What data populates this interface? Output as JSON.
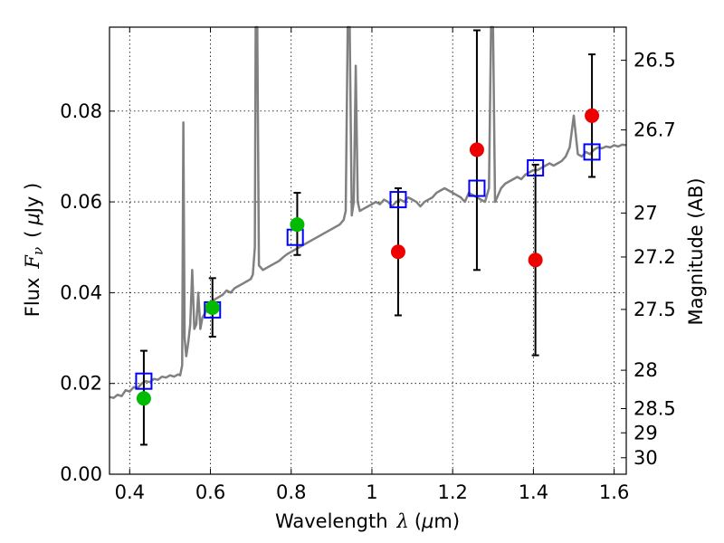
{
  "chart_data": {
    "type": "scatter",
    "xlabel": "Wavelength",
    "xlabel_symbol": "λ",
    "xlabel_unit_open": "(",
    "xlabel_unit_mu": "μ",
    "xlabel_unit_rest": "m)",
    "ylabel": "Flux",
    "ylabel_symbol": "F",
    "ylabel_symbol_sub": "ν",
    "ylabel_unit_open": "(",
    "ylabel_unit_mu": "μ",
    "ylabel_unit_rest": "Jy )",
    "ylabel_right": "Magnitude (AB)",
    "xlim": [
      0.35,
      1.63
    ],
    "ylim": [
      0.0,
      0.0985
    ],
    "grid": true,
    "x_ticks": [
      0.4,
      0.6,
      0.8,
      1.0,
      1.2,
      1.4,
      1.6
    ],
    "x_tick_labels": [
      "0.4",
      "0.6",
      "0.8",
      "1",
      "1.2",
      "1.4",
      "1.6"
    ],
    "y_ticks": [
      0.0,
      0.02,
      0.04,
      0.06,
      0.08
    ],
    "y_tick_labels": [
      "0.00",
      "0.02",
      "0.04",
      "0.06",
      "0.08"
    ],
    "right_ticks": [
      {
        "label": "26.5",
        "mag": 26.5
      },
      {
        "label": "26.7",
        "mag": 26.7
      },
      {
        "label": "27",
        "mag": 27.0
      },
      {
        "label": "27.2",
        "mag": 27.2
      },
      {
        "label": "27.5",
        "mag": 27.5
      },
      {
        "label": "28",
        "mag": 28.0
      },
      {
        "label": "28.5",
        "mag": 28.5
      },
      {
        "label": "29",
        "mag": 29.0
      },
      {
        "label": "30",
        "mag": 30.0
      }
    ],
    "series": [
      {
        "style": "line",
        "color": "#808080",
        "points": [
          [
            0.35,
            0.017
          ],
          [
            0.36,
            0.0168
          ],
          [
            0.37,
            0.0175
          ],
          [
            0.38,
            0.0172
          ],
          [
            0.39,
            0.0185
          ],
          [
            0.4,
            0.0182
          ],
          [
            0.41,
            0.0192
          ],
          [
            0.42,
            0.019
          ],
          [
            0.43,
            0.02
          ],
          [
            0.44,
            0.0205
          ],
          [
            0.45,
            0.0203
          ],
          [
            0.46,
            0.021
          ],
          [
            0.47,
            0.0208
          ],
          [
            0.48,
            0.0215
          ],
          [
            0.49,
            0.0213
          ],
          [
            0.5,
            0.0218
          ],
          [
            0.51,
            0.0215
          ],
          [
            0.52,
            0.022
          ],
          [
            0.525,
            0.0218
          ],
          [
            0.53,
            0.024
          ],
          [
            0.533,
            0.0775
          ],
          [
            0.536,
            0.03
          ],
          [
            0.54,
            0.026
          ],
          [
            0.545,
            0.029
          ],
          [
            0.55,
            0.033
          ],
          [
            0.555,
            0.045
          ],
          [
            0.56,
            0.032
          ],
          [
            0.565,
            0.033
          ],
          [
            0.57,
            0.04
          ],
          [
            0.575,
            0.032
          ],
          [
            0.58,
            0.0345
          ],
          [
            0.59,
            0.036
          ],
          [
            0.6,
            0.037
          ],
          [
            0.61,
            0.0385
          ],
          [
            0.62,
            0.039
          ],
          [
            0.63,
            0.0395
          ],
          [
            0.64,
            0.0405
          ],
          [
            0.65,
            0.04
          ],
          [
            0.66,
            0.041
          ],
          [
            0.67,
            0.0415
          ],
          [
            0.68,
            0.042
          ],
          [
            0.69,
            0.0425
          ],
          [
            0.7,
            0.043
          ],
          [
            0.705,
            0.044
          ],
          [
            0.71,
            0.05
          ],
          [
            0.712,
            0.0985
          ],
          [
            0.716,
            0.0985
          ],
          [
            0.72,
            0.046
          ],
          [
            0.73,
            0.045
          ],
          [
            0.74,
            0.0455
          ],
          [
            0.75,
            0.046
          ],
          [
            0.76,
            0.0465
          ],
          [
            0.77,
            0.047
          ],
          [
            0.78,
            0.0478
          ],
          [
            0.79,
            0.0485
          ],
          [
            0.8,
            0.049
          ],
          [
            0.81,
            0.0495
          ],
          [
            0.82,
            0.05
          ],
          [
            0.83,
            0.0505
          ],
          [
            0.84,
            0.051
          ],
          [
            0.85,
            0.0515
          ],
          [
            0.86,
            0.052
          ],
          [
            0.87,
            0.0525
          ],
          [
            0.88,
            0.053
          ],
          [
            0.89,
            0.0535
          ],
          [
            0.9,
            0.054
          ],
          [
            0.91,
            0.0545
          ],
          [
            0.92,
            0.055
          ],
          [
            0.93,
            0.056
          ],
          [
            0.935,
            0.058
          ],
          [
            0.94,
            0.0985
          ],
          [
            0.945,
            0.0985
          ],
          [
            0.95,
            0.057
          ],
          [
            0.955,
            0.06
          ],
          [
            0.96,
            0.09
          ],
          [
            0.965,
            0.06
          ],
          [
            0.97,
            0.058
          ],
          [
            0.98,
            0.0585
          ],
          [
            0.99,
            0.059
          ],
          [
            1.0,
            0.0595
          ],
          [
            1.01,
            0.06
          ],
          [
            1.02,
            0.0595
          ],
          [
            1.03,
            0.0605
          ],
          [
            1.04,
            0.06
          ],
          [
            1.05,
            0.059
          ],
          [
            1.06,
            0.06
          ],
          [
            1.07,
            0.0605
          ],
          [
            1.08,
            0.06
          ],
          [
            1.09,
            0.061
          ],
          [
            1.1,
            0.0605
          ],
          [
            1.11,
            0.06
          ],
          [
            1.12,
            0.059
          ],
          [
            1.13,
            0.06
          ],
          [
            1.14,
            0.0605
          ],
          [
            1.15,
            0.061
          ],
          [
            1.16,
            0.062
          ],
          [
            1.17,
            0.0625
          ],
          [
            1.18,
            0.063
          ],
          [
            1.19,
            0.0625
          ],
          [
            1.2,
            0.062
          ],
          [
            1.21,
            0.0615
          ],
          [
            1.22,
            0.061
          ],
          [
            1.23,
            0.06
          ],
          [
            1.24,
            0.062
          ],
          [
            1.25,
            0.0615
          ],
          [
            1.26,
            0.061
          ],
          [
            1.27,
            0.0605
          ],
          [
            1.28,
            0.06
          ],
          [
            1.29,
            0.063
          ],
          [
            1.295,
            0.0985
          ],
          [
            1.3,
            0.0985
          ],
          [
            1.305,
            0.06
          ],
          [
            1.31,
            0.061
          ],
          [
            1.32,
            0.063
          ],
          [
            1.33,
            0.064
          ],
          [
            1.34,
            0.0645
          ],
          [
            1.35,
            0.065
          ],
          [
            1.36,
            0.0655
          ],
          [
            1.37,
            0.065
          ],
          [
            1.38,
            0.066
          ],
          [
            1.39,
            0.0665
          ],
          [
            1.4,
            0.067
          ],
          [
            1.41,
            0.067
          ],
          [
            1.42,
            0.0675
          ],
          [
            1.43,
            0.068
          ],
          [
            1.44,
            0.0685
          ],
          [
            1.45,
            0.068
          ],
          [
            1.46,
            0.0685
          ],
          [
            1.47,
            0.069
          ],
          [
            1.48,
            0.07
          ],
          [
            1.49,
            0.072
          ],
          [
            1.5,
            0.079
          ],
          [
            1.51,
            0.0705
          ],
          [
            1.52,
            0.07
          ],
          [
            1.53,
            0.071
          ],
          [
            1.54,
            0.0705
          ],
          [
            1.55,
            0.0715
          ],
          [
            1.56,
            0.072
          ],
          [
            1.57,
            0.0718
          ],
          [
            1.58,
            0.0722
          ],
          [
            1.59,
            0.072
          ],
          [
            1.6,
            0.0725
          ],
          [
            1.61,
            0.0722
          ],
          [
            1.62,
            0.0726
          ],
          [
            1.63,
            0.0725
          ]
        ]
      },
      {
        "style": "open-square",
        "color": "#0000ff",
        "points": [
          [
            0.435,
            0.0205
          ],
          [
            0.605,
            0.0362
          ],
          [
            0.81,
            0.0522
          ],
          [
            1.065,
            0.0605
          ],
          [
            1.26,
            0.063
          ],
          [
            1.405,
            0.0675
          ],
          [
            1.545,
            0.071
          ]
        ]
      },
      {
        "style": "filled-circle",
        "color": "#00bb00",
        "points": [
          [
            0.435,
            0.0167
          ],
          [
            0.605,
            0.0367
          ],
          [
            0.815,
            0.055
          ]
        ]
      },
      {
        "style": "filled-circle",
        "color": "#ee0000",
        "points": [
          [
            1.065,
            0.049
          ],
          [
            1.26,
            0.0715
          ],
          [
            1.405,
            0.0472
          ],
          [
            1.545,
            0.079
          ]
        ]
      },
      {
        "style": "errorbar",
        "color": "#000000",
        "bars": [
          {
            "x": 0.435,
            "low": 0.0065,
            "high": 0.0272
          },
          {
            "x": 0.605,
            "low": 0.0303,
            "high": 0.0432
          },
          {
            "x": 0.815,
            "low": 0.0483,
            "high": 0.062
          },
          {
            "x": 1.065,
            "low": 0.035,
            "high": 0.063
          },
          {
            "x": 1.26,
            "low": 0.045,
            "high": 0.0978
          },
          {
            "x": 1.405,
            "low": 0.0262,
            "high": 0.0682
          },
          {
            "x": 1.545,
            "low": 0.0655,
            "high": 0.0925
          }
        ]
      }
    ]
  }
}
